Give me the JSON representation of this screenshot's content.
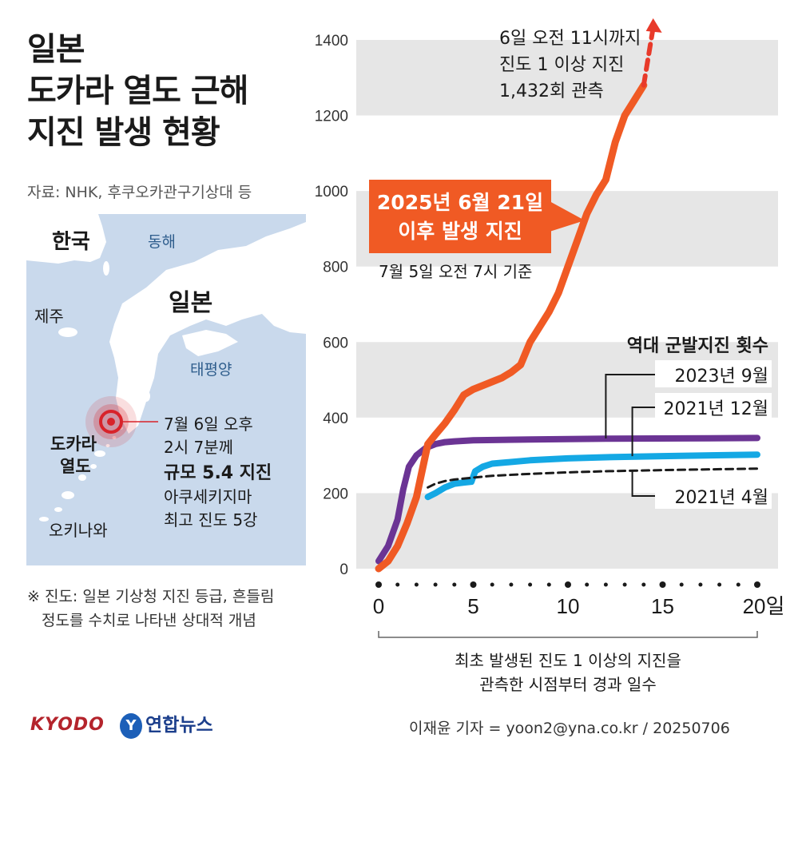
{
  "title": [
    "일본",
    "도카라 열도 근해",
    "지진 발생 현황"
  ],
  "source": "자료: NHK, 후쿠오카관구기상대 등",
  "map": {
    "labels": {
      "korea": "한국",
      "east_sea": "동해",
      "jeju": "제주",
      "japan": "일본",
      "pacific": "태평양",
      "tokara": [
        "도카라",
        "열도"
      ],
      "okinawa": "오키나와"
    },
    "quake": [
      "7월 6일 오후",
      "2시 7분께",
      "규모 5.4 지진",
      "아쿠세키지마",
      "최고 진도 5강"
    ],
    "colors": {
      "sea": "#c9d9ec",
      "land": "#ffffff",
      "epicenter": "#d8232a"
    }
  },
  "note": [
    "※ 진도: 일본 기상청 지진 등급, 흔들림",
    "정도를 수치로 나타낸 상대적 개념"
  ],
  "branding": {
    "kyodo": "KYODO",
    "yna": "연합뉴스",
    "yna_icon": "yonhap-logo-icon"
  },
  "credit": "이재윤 기자 = yoon2@yna.co.kr / 20250706",
  "chart_data": {
    "type": "line",
    "xlabel": [
      "최초 발생된 진도 1 이상의 지진을",
      "관측한 시점부터 경과 일수"
    ],
    "x_ticks": [
      "0",
      "5",
      "10",
      "15",
      "20일"
    ],
    "x_tick_values": [
      0,
      5,
      10,
      15,
      20
    ],
    "xlim": [
      0,
      20
    ],
    "y_ticks": [
      "0",
      "200",
      "400",
      "600",
      "800",
      "1000",
      "1200",
      "1400"
    ],
    "y_tick_values": [
      0,
      200,
      400,
      600,
      800,
      1000,
      1200,
      1400
    ],
    "ylim": [
      0,
      1450
    ],
    "grid": "alternating horizontal bands",
    "legend_title": "역대 군발지진 횟수",
    "annotations": {
      "current_label": [
        "2025년 6월 21일",
        "이후 발생 지진"
      ],
      "current_sub": "7월 5일 오전 7시 기준",
      "arrow_label": [
        "6일 오전 11시까지",
        "진도 1 이상 지진",
        "1,432회 관측"
      ]
    },
    "series": [
      {
        "name": "2025년 6월 21일 이후 발생 지진",
        "color": "#f05a24",
        "style": "solid",
        "x": [
          0,
          0.5,
          1,
          1.5,
          2,
          2.3,
          2.6,
          3,
          3.5,
          4,
          4.5,
          5,
          5.5,
          6,
          6.5,
          7,
          7.5,
          8,
          8.5,
          9,
          9.5,
          10,
          10.5,
          11,
          11.5,
          12,
          12.5,
          13,
          13.5,
          14
        ],
        "values": [
          0,
          20,
          60,
          120,
          190,
          260,
          330,
          355,
          385,
          420,
          460,
          475,
          485,
          495,
          505,
          520,
          540,
          600,
          640,
          680,
          730,
          800,
          870,
          940,
          990,
          1030,
          1130,
          1200,
          1240,
          1280
        ]
      },
      {
        "name": "2025년 6월 21일 이후 발생 지진 (6일 오전 11시까지)",
        "color": "#e83a2a",
        "style": "dashed",
        "x": [
          14,
          14.5
        ],
        "values": [
          1280,
          1432
        ]
      },
      {
        "name": "2023년 9월",
        "color": "#6b3494",
        "style": "solid",
        "x": [
          0,
          0.5,
          1,
          1.3,
          1.6,
          2,
          2.5,
          3,
          3.5,
          4,
          5,
          8,
          12,
          16,
          20
        ],
        "values": [
          20,
          60,
          130,
          210,
          270,
          300,
          320,
          330,
          335,
          337,
          340,
          342,
          344,
          345,
          346
        ]
      },
      {
        "name": "2021년 12월",
        "color": "#14a8e4",
        "style": "solid",
        "x": [
          2.6,
          3,
          3.5,
          4,
          4.5,
          4.9,
          5.1,
          5.5,
          6,
          8,
          10,
          12,
          15,
          20
        ],
        "values": [
          190,
          200,
          215,
          225,
          228,
          230,
          258,
          270,
          278,
          287,
          292,
          295,
          298,
          302
        ]
      },
      {
        "name": "2021년 4월",
        "color": "#1a1a1a",
        "style": "dashed",
        "x": [
          2.6,
          3,
          3.5,
          4,
          5,
          6,
          8,
          10,
          12,
          15,
          20
        ],
        "values": [
          215,
          225,
          232,
          236,
          241,
          246,
          251,
          255,
          258,
          261,
          265
        ]
      }
    ]
  }
}
